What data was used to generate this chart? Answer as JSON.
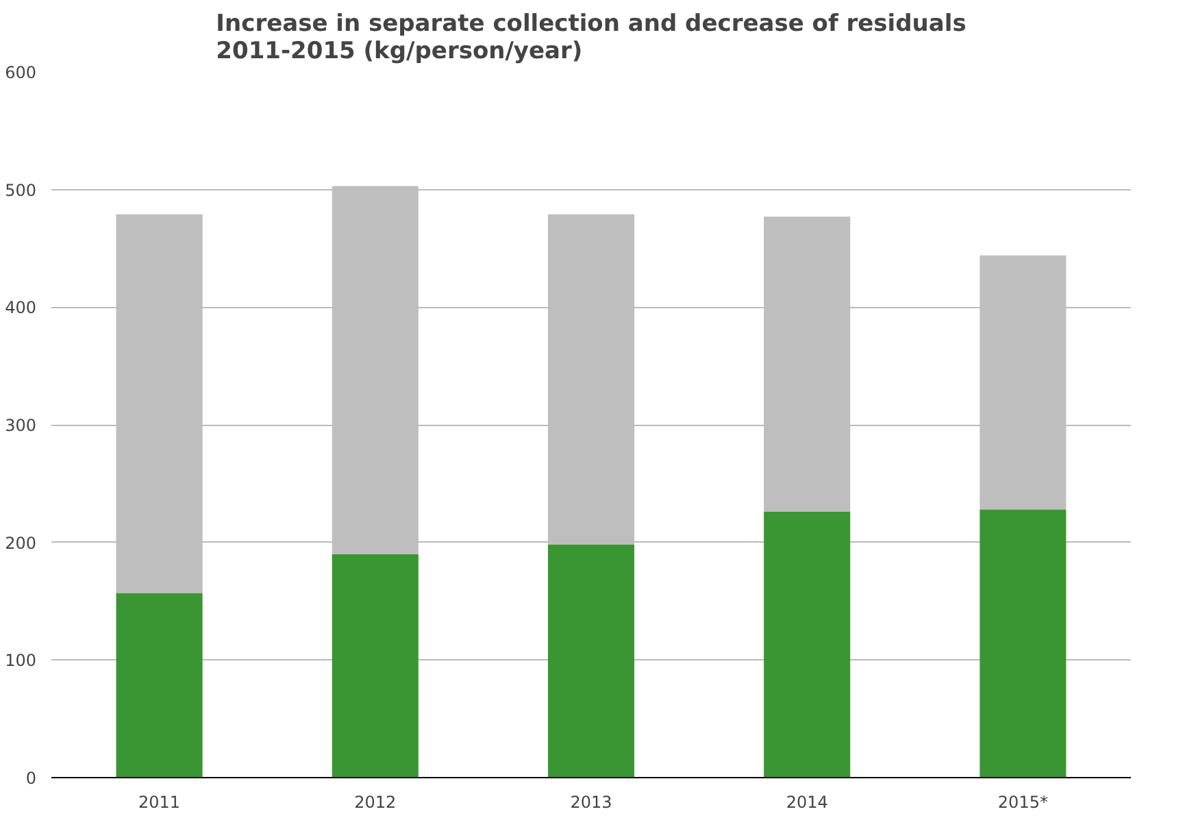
{
  "chart_data": {
    "type": "bar",
    "title": "Increase in separate collection and decrease of residuals\n2011-2015 (kg/person/year)",
    "categories": [
      "2011",
      "2012",
      "2013",
      "2014",
      "2015*"
    ],
    "stacked": true,
    "series": [
      {
        "color": "#3a9632",
        "values": [
          157,
          190,
          198,
          226,
          228
        ]
      },
      {
        "color": "#bebebe",
        "values": [
          322,
          313,
          281,
          251,
          216
        ]
      }
    ],
    "ylim": [
      0,
      600
    ],
    "yticks": [
      0,
      100,
      200,
      300,
      400,
      500,
      600
    ],
    "grid": "y"
  }
}
